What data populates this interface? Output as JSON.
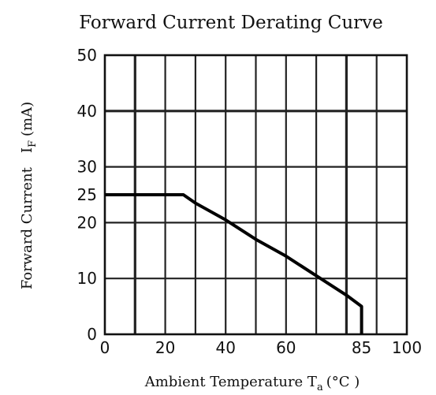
{
  "chart_data": {
    "type": "line",
    "title": "Forward Current Derating Curve",
    "xlabel": "Ambient Temperature T",
    "xlabel_sub": "a",
    "xlabel_unit": "(°C )",
    "ylabel": "Forward Current",
    "ylabel_symbol": "I",
    "ylabel_sub": "F",
    "ylabel_unit": "(mA)",
    "xlim": [
      0,
      100
    ],
    "ylim": [
      0,
      50
    ],
    "x_ticks": [
      {
        "value": 0,
        "label": "0"
      },
      {
        "value": 20,
        "label": "20"
      },
      {
        "value": 40,
        "label": "40"
      },
      {
        "value": 60,
        "label": "60"
      },
      {
        "value": 85,
        "label": "85"
      },
      {
        "value": 100,
        "label": "100"
      }
    ],
    "y_ticks": [
      {
        "value": 0,
        "label": "0"
      },
      {
        "value": 10,
        "label": "10"
      },
      {
        "value": 20,
        "label": "20"
      },
      {
        "value": 25,
        "label": "25"
      },
      {
        "value": 30,
        "label": "30"
      },
      {
        "value": 40,
        "label": "40"
      },
      {
        "value": 50,
        "label": "50"
      }
    ],
    "v_gridlines": [
      10,
      20,
      30,
      40,
      50,
      60,
      70,
      80,
      90
    ],
    "h_gridlines": [
      10,
      20,
      30,
      40
    ],
    "grid": true,
    "series": [
      {
        "x": [
          0,
          26,
          30,
          40,
          50,
          60,
          70,
          80,
          85,
          85
        ],
        "y": [
          25,
          25,
          23.5,
          20.5,
          17,
          14,
          10.5,
          7,
          5,
          0
        ]
      }
    ]
  }
}
